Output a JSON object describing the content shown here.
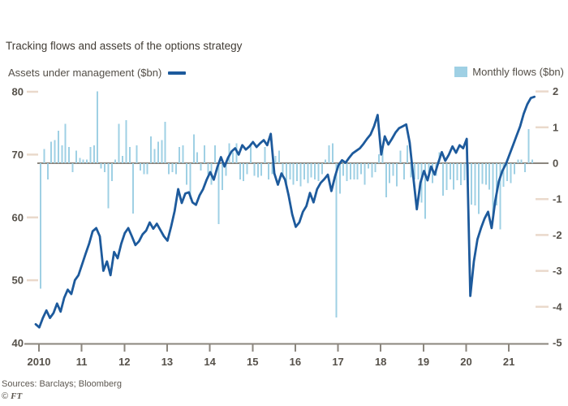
{
  "header": {
    "title": "Tracking flows and assets of the options strategy"
  },
  "legend": {
    "aum_label": "Assets under management ($bn)",
    "flows_label": "Monthly flows ($bn)"
  },
  "source": {
    "line1": "Sources: Barclays; Bloomberg",
    "copyright": "©",
    "brand": "FT"
  },
  "colors": {
    "line": "#1d5a9c",
    "bar": "#9fd0e4",
    "axis_line": "#8b867e",
    "tick_dash": "#ead9cb",
    "axis_text": "#56514a"
  },
  "chart_data": {
    "type": "combo line+bar",
    "x_monthly_from": "2010-01",
    "x_monthly_to": "2021-09",
    "x_tick_labels": [
      "2010",
      "11",
      "12",
      "13",
      "14",
      "15",
      "16",
      "17",
      "18",
      "19",
      "20",
      "21"
    ],
    "left_axis": {
      "series": "Assets under management ($bn)",
      "ticks": [
        80,
        70,
        60,
        50,
        40
      ],
      "range": [
        40,
        80
      ]
    },
    "right_axis": {
      "series": "Monthly flows ($bn)",
      "ticks": [
        2,
        1,
        0,
        -1,
        -2,
        -3,
        -4,
        -5
      ],
      "range": [
        -5,
        2
      ]
    },
    "series": [
      {
        "name": "Assets under management ($bn)",
        "type": "line",
        "axis": "left",
        "monthly_values": [
          43.0,
          42.5,
          44.0,
          45.2,
          44.0,
          44.8,
          46.3,
          45.0,
          47.2,
          48.5,
          47.8,
          50.0,
          50.8,
          52.5,
          54.2,
          55.8,
          57.8,
          58.3,
          57.0,
          51.5,
          53.0,
          50.8,
          54.5,
          53.5,
          55.8,
          57.5,
          58.3,
          57.0,
          55.6,
          56.2,
          57.3,
          57.9,
          59.2,
          58.2,
          59.0,
          58.0,
          57.0,
          56.3,
          58.5,
          61.0,
          64.5,
          62.3,
          63.8,
          64.0,
          62.4,
          62.0,
          63.5,
          64.5,
          66.0,
          67.2,
          66.0,
          68.0,
          69.6,
          68.1,
          69.5,
          70.5,
          71.0,
          70.0,
          71.5,
          70.8,
          71.3,
          72.0,
          71.2,
          71.8,
          72.3,
          71.5,
          73.3,
          67.0,
          65.2,
          67.0,
          66.0,
          63.5,
          60.5,
          58.5,
          59.2,
          60.9,
          61.8,
          63.9,
          62.4,
          64.5,
          65.5,
          66.1,
          66.8,
          64.2,
          66.5,
          68.3,
          69.1,
          68.7,
          69.5,
          70.2,
          70.6,
          71.0,
          71.7,
          72.5,
          73.2,
          74.5,
          76.3,
          70.0,
          72.9,
          71.6,
          72.5,
          73.5,
          74.2,
          74.5,
          74.8,
          71.9,
          66.5,
          61.3,
          65.5,
          67.4,
          65.9,
          68.1,
          66.8,
          68.7,
          70.4,
          69.0,
          70.0,
          71.3,
          70.3,
          71.5,
          71.0,
          72.5,
          47.5,
          53.0,
          56.5,
          58.3,
          59.8,
          60.9,
          58.3,
          62.6,
          65.7,
          67.4,
          68.5,
          70.0,
          71.5,
          73.0,
          74.5,
          76.5,
          78.0,
          79.0,
          79.2
        ]
      },
      {
        "name": "Monthly flows ($bn)",
        "type": "bar",
        "axis": "right",
        "monthly_values": [
          -3.5,
          0.4,
          -0.45,
          0.6,
          0.65,
          0.9,
          0.5,
          1.1,
          0.45,
          -0.25,
          0.35,
          0.15,
          0.1,
          0.1,
          0.45,
          0.5,
          2.0,
          -0.15,
          -0.25,
          -1.25,
          -0.5,
          0.1,
          1.1,
          0.2,
          1.2,
          0.45,
          -1.4,
          0.5,
          -0.2,
          -0.3,
          -0.3,
          0.75,
          0.4,
          0.6,
          0.65,
          1.15,
          -0.3,
          -0.25,
          -0.3,
          0.45,
          0.5,
          -0.6,
          -1.0,
          0.8,
          0.3,
          -0.2,
          0.5,
          -0.3,
          -0.6,
          0.5,
          -1.7,
          -0.75,
          -0.35,
          0.55,
          0.3,
          0.55,
          -0.45,
          -0.5,
          -0.3,
          0.55,
          -0.35,
          -0.4,
          -0.35,
          0.45,
          -0.45,
          -0.3,
          0.2,
          0.35,
          -0.4,
          -0.55,
          -0.45,
          -0.6,
          -0.5,
          -0.65,
          -0.45,
          -0.55,
          -0.4,
          -0.45,
          -0.5,
          -0.3,
          0.1,
          0.5,
          0.55,
          -4.3,
          -0.85,
          -0.35,
          -0.5,
          -0.45,
          -0.45,
          -0.45,
          -0.3,
          -0.6,
          -0.15,
          -0.4,
          -0.25,
          0.25,
          0.4,
          -0.95,
          -0.55,
          -0.35,
          -0.65,
          0.35,
          -0.45,
          0.5,
          -0.4,
          -0.45,
          -0.45,
          -1.1,
          -1.55,
          -0.3,
          -0.55,
          -0.35,
          0.3,
          -0.9,
          -0.75,
          -0.45,
          -0.73,
          -0.47,
          -0.61,
          -0.47,
          -0.61,
          -1.15,
          -1.18,
          -1.41,
          -0.58,
          -0.6,
          -0.73,
          -1.45,
          -1.18,
          -1.84,
          -0.66,
          -0.5,
          -0.55,
          -0.3,
          0.1,
          0.1,
          -0.25,
          0.95,
          0.1,
          null,
          null
        ]
      }
    ]
  }
}
